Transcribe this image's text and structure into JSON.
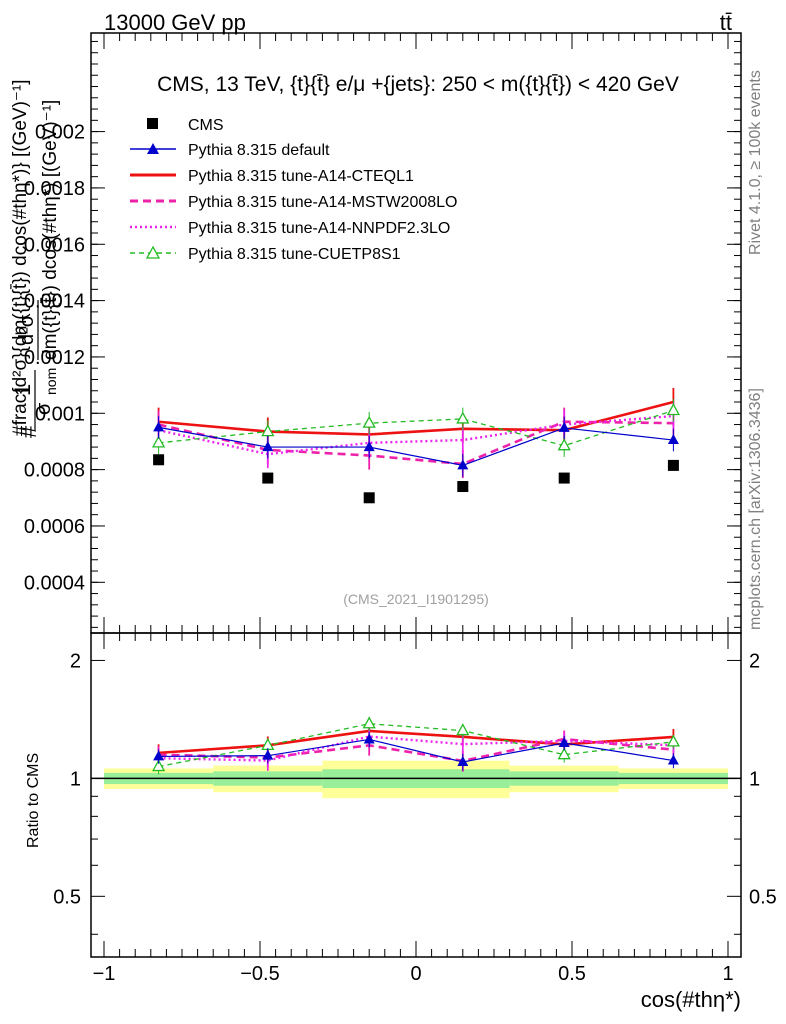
{
  "header": {
    "energy_label": "13000 GeV pp",
    "process_label": "tt̄",
    "side_rivet": "Rivet 4.1.0, ≥ 100k events",
    "side_source": "mcplots.cern.ch [arXiv:1306.3436]",
    "watermark": "(CMS_2021_I1901295)"
  },
  "chart_data": {
    "type": "scatter",
    "title": "CMS, 13 TeV, {t}{t̄} e/μ +{jets}: 250 < m({t}{t̄}) < 420 GeV",
    "xlabel": "cos(#thη*)",
    "ylabel": "1/σ_nom d²σ / dm({t}{t̄}) dcos(#thη*) [(GeV)⁻¹]",
    "ylabel_parts": {
      "prefix": "#",
      "frac_top": "1",
      "frac_bottom": "σ",
      "frac_bottom_sub": "nom",
      "d2sigma": "d²σ",
      "dm": "dm({t}{t̄}) dcos(#thη*) [(GeV)⁻¹]",
      "overlay": "#frac{d²σ}{dm({t}{t̄}) dcos(#thη*)} [(GeV)⁻¹]"
    },
    "ratio_ylabel": "Ratio to CMS",
    "xlim": [
      -1.0,
      1.0
    ],
    "ylim": [
      0.00022,
      0.00235
    ],
    "ratio_ylim": [
      0.35,
      2.35
    ],
    "x": [
      -0.825,
      -0.475,
      -0.15,
      0.15,
      0.475,
      0.825
    ],
    "x_edges": [
      -1.0,
      -0.65,
      -0.3,
      0.0,
      0.3,
      0.65,
      1.0
    ],
    "x_ticks": [
      -1.0,
      -0.5,
      0.0,
      0.5,
      1.0
    ],
    "x_tick_labels": [
      "−1",
      "−0.5",
      "0",
      "0.5",
      "1"
    ],
    "y_ticks": [
      0.0004,
      0.0006,
      0.0008,
      0.001,
      0.0012,
      0.0014,
      0.0016,
      0.0018,
      0.002
    ],
    "y_tick_labels": [
      "0.0004",
      "0.0006",
      "0.0008",
      "0.001",
      "0.0012",
      "0.0014",
      "0.0016",
      "0.0018",
      "0.002"
    ],
    "ratio_ticks": [
      0.5,
      1.0,
      2.0
    ],
    "ratio_tick_labels": [
      "0.5",
      "1",
      "2"
    ],
    "data": {
      "name": "CMS",
      "values": [
        0.000835,
        0.00077,
        0.0007,
        0.00074,
        0.00077,
        0.000815
      ],
      "band_inner": [
        0.033,
        0.042,
        0.055,
        0.055,
        0.042,
        0.033
      ],
      "band_outer": [
        0.06,
        0.078,
        0.11,
        0.11,
        0.078,
        0.06
      ]
    },
    "series": [
      {
        "name": "Pythia 8.315 default",
        "color": "#0000cc",
        "style": "solid",
        "marker": "triangle-filled",
        "values": [
          0.00095,
          0.00088,
          0.00088,
          0.000815,
          0.000948,
          0.000905
        ],
        "errors": [
          4e-05,
          4e-05,
          4e-05,
          4e-05,
          4e-05,
          4e-05
        ]
      },
      {
        "name": "Pythia 8.315 tune-A14-CTEQL1",
        "color": "#ee1111",
        "style": "solid-thick",
        "marker": "none",
        "values": [
          0.00097,
          0.000935,
          0.000925,
          0.000945,
          0.00094,
          0.00104
        ],
        "errors": [
          5e-05,
          5e-05,
          5e-05,
          5e-05,
          5e-05,
          5e-05
        ]
      },
      {
        "name": "Pythia 8.315 tune-A14-MSTW2008LO",
        "color": "#ee22aa",
        "style": "dashed",
        "marker": "none",
        "values": [
          0.00096,
          0.00087,
          0.00085,
          0.00082,
          0.00097,
          0.000965
        ],
        "errors": [
          5e-05,
          5e-05,
          5e-05,
          5e-05,
          5e-05,
          5e-05
        ]
      },
      {
        "name": "Pythia 8.315 tune-A14-NNPDF2.3LO",
        "color": "#ee22ee",
        "style": "dotted",
        "marker": "none",
        "values": [
          0.00094,
          0.000855,
          0.000895,
          0.000905,
          0.00096,
          0.00099
        ],
        "errors": [
          5e-05,
          5e-05,
          5e-05,
          5e-05,
          5e-05,
          5e-05
        ]
      },
      {
        "name": "Pythia 8.315 tune-CUETP8S1",
        "color": "#22bb22",
        "style": "dashed-thin",
        "marker": "triangle-open",
        "values": [
          0.000895,
          0.000935,
          0.000965,
          0.00098,
          0.000885,
          0.00101
        ],
        "errors": [
          4e-05,
          4e-05,
          4e-05,
          4e-05,
          4e-05,
          4e-05
        ]
      }
    ]
  }
}
